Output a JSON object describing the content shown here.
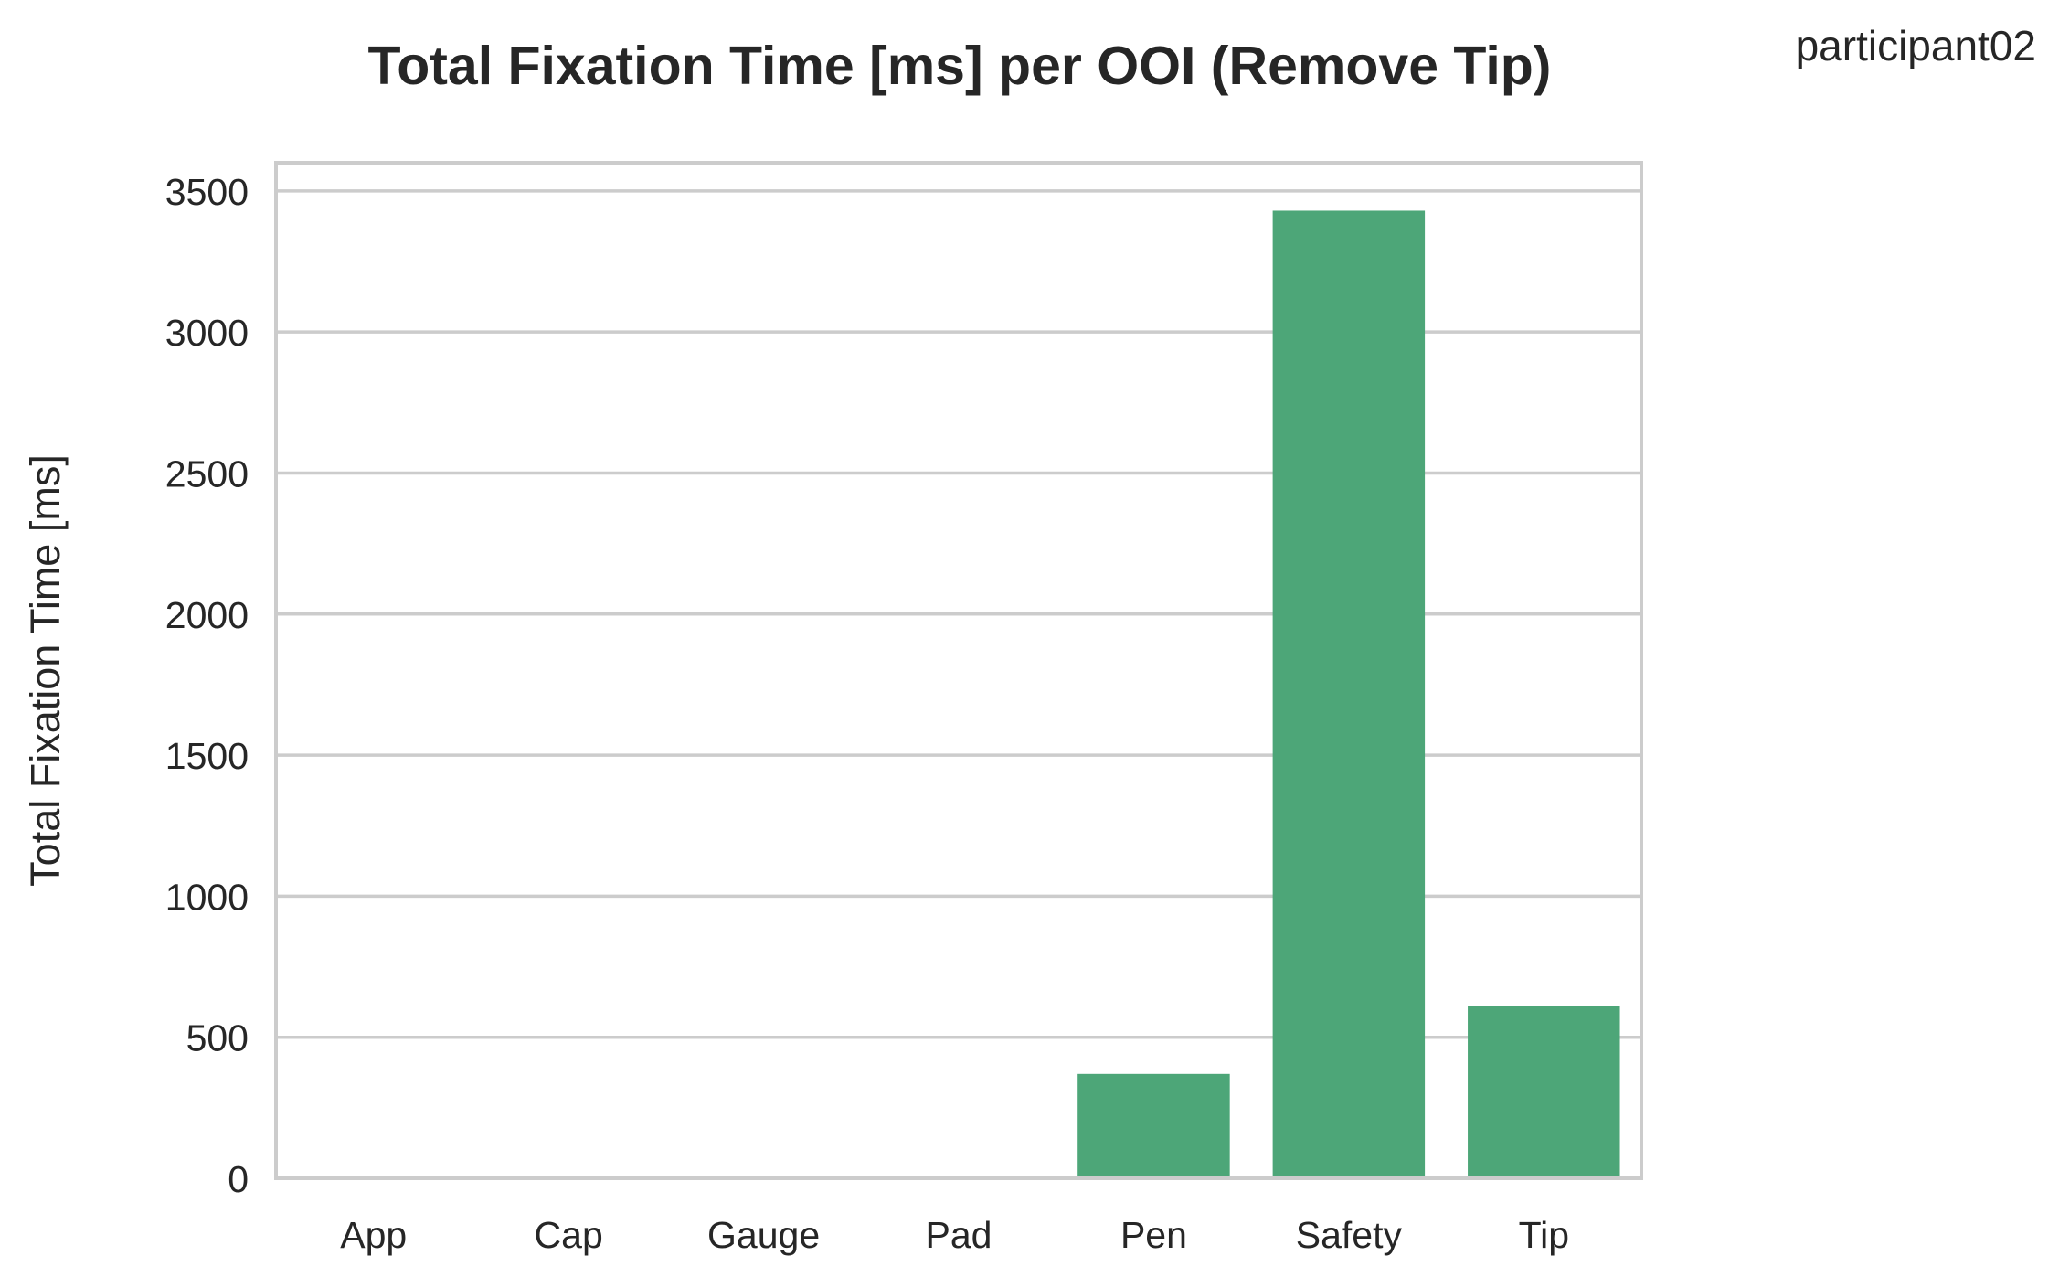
{
  "chart_data": {
    "type": "bar",
    "title": "Total Fixation Time [ms] per OOI (Remove Tip)",
    "annotation": "participant02",
    "xlabel": "",
    "ylabel": "Total Fixation Time [ms]",
    "categories": [
      "App",
      "Cap",
      "Gauge",
      "Pad",
      "Pen",
      "Safety",
      "Tip"
    ],
    "values": [
      0,
      0,
      0,
      0,
      370,
      3430,
      610
    ],
    "ylim": [
      0,
      3600
    ],
    "yticks": [
      0,
      500,
      1000,
      1500,
      2000,
      2500,
      3000,
      3500
    ],
    "grid": true,
    "bar_color": "#4da678",
    "grid_color": "#cccccc"
  }
}
